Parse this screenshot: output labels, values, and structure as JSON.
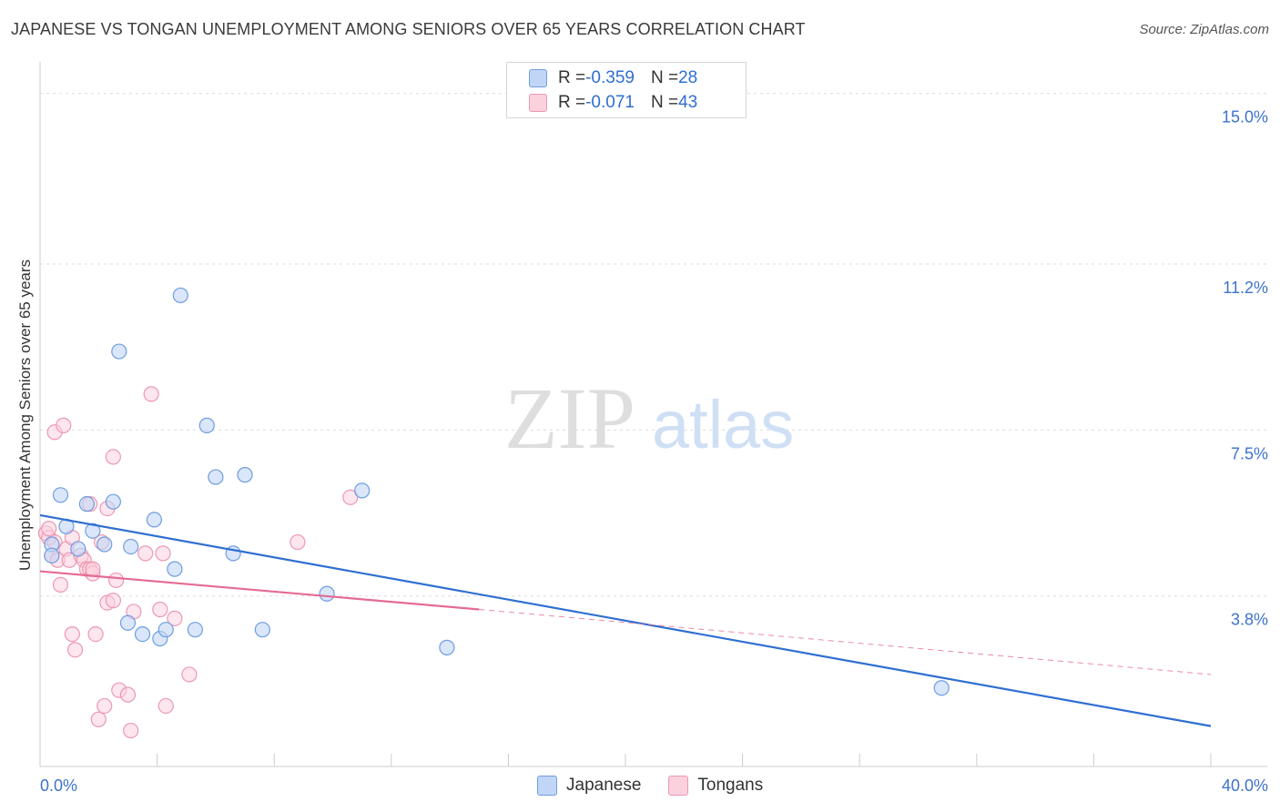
{
  "title": "JAPANESE VS TONGAN UNEMPLOYMENT AMONG SENIORS OVER 65 YEARS CORRELATION CHART",
  "source": "Source: ZipAtlas.com",
  "watermark": {
    "zip": "ZIP",
    "atlas": "atlas"
  },
  "legend": {
    "r_label": "R = ",
    "n_label": "N = ",
    "japanese": {
      "r": "-0.359",
      "n": "28"
    },
    "tongans": {
      "r": "-0.071",
      "n": "43"
    }
  },
  "bottom_legend": {
    "japanese": "Japanese",
    "tongans": "Tongans"
  },
  "chart_data": {
    "type": "scatter",
    "title": "JAPANESE VS TONGAN UNEMPLOYMENT AMONG SENIORS OVER 65 YEARS CORRELATION CHART",
    "ylabel": "Unemployment Among Seniors over 65 years",
    "xlabel": "",
    "xlim": [
      0,
      40
    ],
    "ylim": [
      0,
      15.5
    ],
    "x_tick_labels": [
      "0.0%",
      "40.0%"
    ],
    "y_tick_labels": [
      {
        "value": 3.8,
        "label": "3.8%"
      },
      {
        "value": 7.5,
        "label": "7.5%"
      },
      {
        "value": 11.2,
        "label": "11.2%"
      },
      {
        "value": 15.0,
        "label": "15.0%"
      }
    ],
    "colors": {
      "japanese": "#6f9de0",
      "japanese_fill": "#c1d6f6",
      "japanese_line": "#2f6fd1",
      "tongans": "#ec98b3",
      "tongans_fill": "#fbd1de",
      "tongans_line": "#e56b93",
      "tick_text": "#3d72cc"
    },
    "series": [
      {
        "name": "Japanese",
        "points": [
          [
            0.4,
            4.95
          ],
          [
            0.4,
            4.7
          ],
          [
            0.7,
            6.05
          ],
          [
            0.9,
            5.35
          ],
          [
            1.3,
            4.85
          ],
          [
            1.6,
            5.85
          ],
          [
            1.8,
            5.25
          ],
          [
            2.2,
            4.95
          ],
          [
            2.5,
            5.9
          ],
          [
            2.7,
            9.25
          ],
          [
            3.0,
            3.2
          ],
          [
            3.1,
            4.9
          ],
          [
            3.5,
            2.95
          ],
          [
            3.9,
            5.5
          ],
          [
            4.1,
            2.85
          ],
          [
            4.3,
            3.05
          ],
          [
            4.6,
            4.4
          ],
          [
            4.8,
            10.5
          ],
          [
            5.3,
            3.05
          ],
          [
            5.7,
            7.6
          ],
          [
            6.0,
            6.45
          ],
          [
            6.6,
            4.75
          ],
          [
            7.0,
            6.5
          ],
          [
            7.6,
            3.05
          ],
          [
            9.8,
            3.85
          ],
          [
            11.0,
            6.15
          ],
          [
            13.9,
            2.65
          ],
          [
            30.8,
            1.75
          ]
        ],
        "trend": {
          "x": [
            0,
            40
          ],
          "y": [
            5.6,
            0.9
          ]
        }
      },
      {
        "name": "Tongans",
        "points": [
          [
            0.2,
            5.2
          ],
          [
            0.3,
            5.1
          ],
          [
            0.3,
            5.3
          ],
          [
            0.4,
            4.7
          ],
          [
            0.5,
            7.45
          ],
          [
            0.5,
            5.0
          ],
          [
            0.6,
            4.6
          ],
          [
            0.7,
            4.05
          ],
          [
            0.8,
            7.6
          ],
          [
            0.9,
            4.85
          ],
          [
            1.0,
            4.6
          ],
          [
            1.1,
            5.1
          ],
          [
            1.1,
            2.95
          ],
          [
            1.2,
            2.6
          ],
          [
            1.4,
            4.7
          ],
          [
            1.5,
            4.6
          ],
          [
            1.6,
            4.4
          ],
          [
            1.7,
            4.4
          ],
          [
            1.7,
            5.85
          ],
          [
            1.8,
            4.3
          ],
          [
            1.8,
            4.4
          ],
          [
            1.9,
            2.95
          ],
          [
            2.0,
            1.05
          ],
          [
            2.1,
            5.0
          ],
          [
            2.2,
            1.35
          ],
          [
            2.3,
            5.75
          ],
          [
            2.3,
            3.65
          ],
          [
            2.5,
            3.7
          ],
          [
            2.5,
            6.9
          ],
          [
            2.6,
            4.15
          ],
          [
            2.7,
            1.7
          ],
          [
            3.0,
            1.6
          ],
          [
            3.1,
            0.8
          ],
          [
            3.2,
            3.45
          ],
          [
            3.6,
            4.75
          ],
          [
            3.8,
            8.3
          ],
          [
            4.1,
            3.5
          ],
          [
            4.2,
            4.75
          ],
          [
            4.3,
            1.35
          ],
          [
            4.6,
            3.3
          ],
          [
            5.1,
            2.05
          ],
          [
            8.8,
            5.0
          ],
          [
            10.6,
            6.0
          ]
        ],
        "trend": {
          "x": [
            0,
            15
          ],
          "y": [
            4.35,
            3.5
          ]
        },
        "trend_extension": {
          "x": [
            15,
            40
          ],
          "y": [
            3.5,
            2.05
          ]
        }
      }
    ]
  }
}
